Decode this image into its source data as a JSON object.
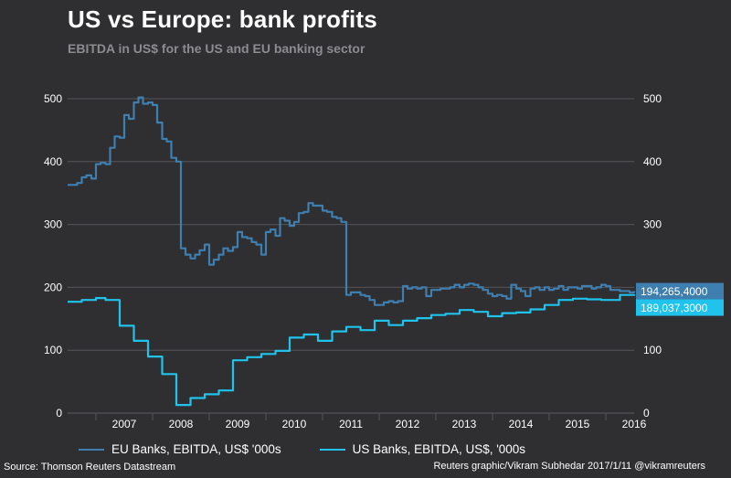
{
  "title": "US vs Europe: bank profits",
  "subtitle": "EBITDA in US$ for the US and EU banking sector",
  "source": "Source: Thomson Reuters Datastream",
  "credit": "Reuters graphic/Vikram Subhedar 2017/1/11  @vikramreuters",
  "colors": {
    "background": "#2f2f31",
    "eu": "#3f7fb0",
    "us": "#1fc3ec",
    "grid": "#55555a",
    "axis_text": "#ffffff"
  },
  "chart_data": {
    "type": "line",
    "x_unit": "year",
    "xlim": [
      2006.5,
      2016.5
    ],
    "ylim": [
      0,
      500
    ],
    "yticks": [
      0,
      100,
      200,
      300,
      400,
      500
    ],
    "xticks": [
      "2007",
      "2008",
      "2009",
      "2010",
      "2011",
      "2012",
      "2013",
      "2014",
      "2015",
      "2016"
    ],
    "grid": true,
    "legend_position": "bottom",
    "series": [
      {
        "name": "EU Banks, EBITDA, US$ '000s",
        "end_label": "194,265,4000",
        "x": [
          2006.5,
          2006.58,
          2006.67,
          2006.75,
          2006.83,
          2006.92,
          2007.0,
          2007.08,
          2007.17,
          2007.25,
          2007.33,
          2007.42,
          2007.5,
          2007.58,
          2007.67,
          2007.75,
          2007.83,
          2007.92,
          2008.0,
          2008.08,
          2008.17,
          2008.25,
          2008.33,
          2008.42,
          2008.5,
          2008.58,
          2008.67,
          2008.75,
          2008.83,
          2008.92,
          2009.0,
          2009.08,
          2009.17,
          2009.25,
          2009.33,
          2009.42,
          2009.5,
          2009.58,
          2009.67,
          2009.75,
          2009.83,
          2009.92,
          2010.0,
          2010.08,
          2010.17,
          2010.25,
          2010.33,
          2010.42,
          2010.5,
          2010.58,
          2010.67,
          2010.75,
          2010.83,
          2010.92,
          2011.0,
          2011.08,
          2011.17,
          2011.25,
          2011.33,
          2011.42,
          2011.5,
          2011.58,
          2011.67,
          2011.75,
          2011.83,
          2011.92,
          2012.0,
          2012.08,
          2012.17,
          2012.25,
          2012.33,
          2012.42,
          2012.5,
          2012.58,
          2012.67,
          2012.75,
          2012.83,
          2012.92,
          2013.0,
          2013.08,
          2013.17,
          2013.25,
          2013.33,
          2013.42,
          2013.5,
          2013.58,
          2013.67,
          2013.75,
          2013.83,
          2013.92,
          2014.0,
          2014.08,
          2014.17,
          2014.25,
          2014.33,
          2014.42,
          2014.5,
          2014.58,
          2014.67,
          2014.75,
          2014.83,
          2014.92,
          2015.0,
          2015.08,
          2015.17,
          2015.25,
          2015.33,
          2015.42,
          2015.5,
          2015.58,
          2015.67,
          2015.75,
          2015.83,
          2015.92,
          2016.0,
          2016.08,
          2016.17,
          2016.25,
          2016.33,
          2016.42,
          2016.5
        ],
        "values": [
          363,
          363,
          366,
          375,
          378,
          373,
          396,
          398,
          396,
          422,
          440,
          438,
          474,
          468,
          494,
          502,
          492,
          494,
          490,
          462,
          436,
          432,
          406,
          400,
          262,
          252,
          246,
          252,
          259,
          268,
          236,
          244,
          252,
          262,
          258,
          264,
          288,
          280,
          278,
          272,
          268,
          252,
          288,
          292,
          282,
          310,
          306,
          298,
          304,
          318,
          320,
          334,
          330,
          330,
          322,
          320,
          312,
          310,
          304,
          188,
          192,
          192,
          188,
          186,
          180,
          172,
          172,
          176,
          178,
          176,
          178,
          202,
          198,
          200,
          198,
          200,
          186,
          196,
          196,
          198,
          198,
          200,
          204,
          200,
          204,
          206,
          204,
          200,
          196,
          190,
          186,
          188,
          186,
          182,
          204,
          198,
          194,
          186,
          198,
          200,
          196,
          200,
          196,
          198,
          202,
          196,
          200,
          200,
          198,
          202,
          202,
          198,
          200,
          204,
          202,
          196,
          196,
          194,
          194,
          192,
          194
        ]
      },
      {
        "name": "US Banks, EBITDA, US$, '000s",
        "end_label": "189,037,3000",
        "x": [
          2006.5,
          2006.58,
          2006.67,
          2006.75,
          2006.83,
          2006.92,
          2007.0,
          2007.08,
          2007.17,
          2007.25,
          2007.33,
          2007.42,
          2007.5,
          2007.58,
          2007.67,
          2007.75,
          2007.83,
          2007.92,
          2008.0,
          2008.08,
          2008.17,
          2008.25,
          2008.33,
          2008.42,
          2008.5,
          2008.58,
          2008.67,
          2008.75,
          2008.83,
          2008.92,
          2009.0,
          2009.08,
          2009.17,
          2009.25,
          2009.33,
          2009.42,
          2009.5,
          2009.58,
          2009.67,
          2009.75,
          2009.83,
          2009.92,
          2010.0,
          2010.08,
          2010.17,
          2010.25,
          2010.33,
          2010.42,
          2010.5,
          2010.58,
          2010.67,
          2010.75,
          2010.83,
          2010.92,
          2011.0,
          2011.08,
          2011.17,
          2011.25,
          2011.33,
          2011.42,
          2011.5,
          2011.58,
          2011.67,
          2011.75,
          2011.83,
          2011.92,
          2012.0,
          2012.08,
          2012.17,
          2012.25,
          2012.33,
          2012.42,
          2012.5,
          2012.58,
          2012.67,
          2012.75,
          2012.83,
          2012.92,
          2013.0,
          2013.08,
          2013.17,
          2013.25,
          2013.33,
          2013.42,
          2013.5,
          2013.58,
          2013.67,
          2013.75,
          2013.83,
          2013.92,
          2014.0,
          2014.08,
          2014.17,
          2014.25,
          2014.33,
          2014.42,
          2014.5,
          2014.58,
          2014.67,
          2014.75,
          2014.83,
          2014.92,
          2015.0,
          2015.08,
          2015.17,
          2015.25,
          2015.33,
          2015.42,
          2015.5,
          2015.58,
          2015.67,
          2015.75,
          2015.83,
          2015.92,
          2016.0,
          2016.08,
          2016.17,
          2016.25,
          2016.33,
          2016.42,
          2016.5
        ],
        "values": [
          177,
          177,
          177,
          180,
          180,
          180,
          183,
          183,
          180,
          180,
          180,
          139,
          139,
          139,
          115,
          115,
          115,
          90,
          90,
          90,
          62,
          62,
          62,
          13,
          13,
          13,
          24,
          24,
          24,
          30,
          30,
          30,
          36,
          36,
          36,
          84,
          84,
          84,
          89,
          89,
          89,
          94,
          94,
          94,
          99,
          99,
          99,
          120,
          120,
          120,
          125,
          125,
          125,
          115,
          115,
          115,
          130,
          130,
          130,
          137,
          137,
          137,
          132,
          132,
          132,
          147,
          147,
          147,
          140,
          140,
          140,
          147,
          147,
          147,
          151,
          151,
          151,
          156,
          156,
          156,
          158,
          158,
          158,
          164,
          164,
          164,
          161,
          161,
          161,
          154,
          154,
          154,
          159,
          159,
          159,
          160,
          160,
          160,
          165,
          165,
          165,
          172,
          172,
          172,
          180,
          180,
          180,
          182,
          182,
          182,
          181,
          181,
          181,
          180,
          180,
          180,
          180,
          188,
          188,
          188,
          189
        ]
      }
    ]
  }
}
